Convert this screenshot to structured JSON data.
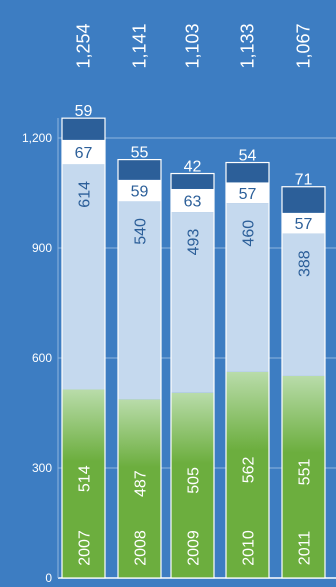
{
  "chart_data": {
    "type": "bar",
    "stacked": true,
    "categories": [
      "2007",
      "2008",
      "2009",
      "2010",
      "2011"
    ],
    "totals": [
      "1,254",
      "1,141",
      "1,103",
      "1,133",
      "1,067"
    ],
    "series": [
      {
        "values": [
          514,
          487,
          505,
          562,
          551
        ],
        "color": "#6cae3e",
        "color_top": "#b9dcaa"
      },
      {
        "values": [
          614,
          540,
          493,
          460,
          388
        ],
        "color": "#c5d9ee"
      },
      {
        "values": [
          67,
          59,
          63,
          57,
          57
        ],
        "color": "#ffffff"
      },
      {
        "values": [
          59,
          55,
          42,
          54,
          71
        ],
        "color": "#2c5f99"
      }
    ],
    "y_ticks": [
      "0",
      "300",
      "600",
      "900",
      "1,200"
    ],
    "ylim": [
      0,
      1254
    ],
    "grid": true,
    "colors": {
      "background": "#3d7dc2",
      "grid": "#8fb5dd",
      "text": "#ffffff"
    }
  }
}
